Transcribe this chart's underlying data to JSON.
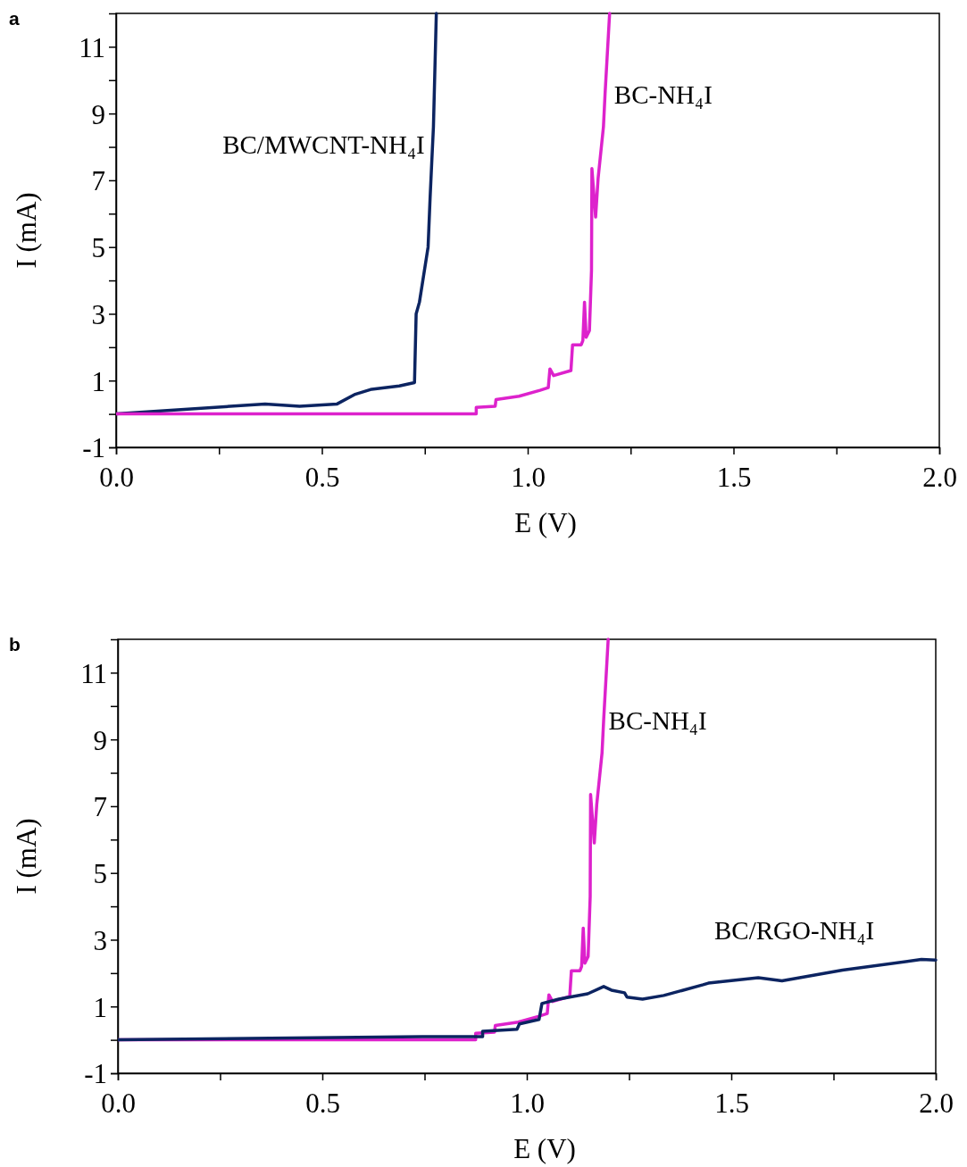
{
  "chart_data": [
    {
      "type": "line",
      "title": "a",
      "xlabel": "E (V)",
      "ylabel": "I (mA)",
      "xlim": [
        0,
        2
      ],
      "ylim": [
        -1,
        12
      ],
      "xticks": [
        {
          "value": 0,
          "label": "0.0"
        },
        {
          "value": 0.25,
          "label": null
        },
        {
          "value": 0.5,
          "label": "0.5"
        },
        {
          "value": 0.75,
          "label": null
        },
        {
          "value": 1,
          "label": "1.0"
        },
        {
          "value": 1.25,
          "label": null
        },
        {
          "value": 1.5,
          "label": "1.5"
        },
        {
          "value": 1.75,
          "label": null
        },
        {
          "value": 2,
          "label": "2.0"
        }
      ],
      "yticks": [
        -1,
        {
          "value": 0,
          "label": null
        },
        1,
        {
          "value": 2,
          "label": null
        },
        3,
        {
          "value": 4,
          "label": null
        },
        5,
        {
          "value": 6,
          "label": null
        },
        7,
        {
          "value": 8,
          "label": null
        },
        9,
        {
          "value": 10,
          "label": null
        },
        11
      ],
      "grid": false,
      "legend": false,
      "marker": "none",
      "line_style": "solid",
      "series": [
        {
          "name": "BC/MWCNT-NH₄I",
          "color": "#0c2461",
          "x": [
            0,
            0.362,
            0.446,
            0.537,
            0.579,
            0.621,
            0.688,
            0.725,
            0.729,
            0.737,
            0.758,
            0.763,
            0.767,
            0.771,
            0.778
          ],
          "values": [
            0,
            0.3,
            0.23,
            0.3,
            0.58,
            0.74,
            0.84,
            0.94,
            3.0,
            3.35,
            5.0,
            6.5,
            7.56,
            8.6,
            12
          ]
        },
        {
          "name": "BC-NH₄I",
          "color": "#dd22cc",
          "x": [
            0,
            0.875,
            0.875,
            0.921,
            0.923,
            0.979,
            1.03,
            1.05,
            1.054,
            1.063,
            1.105,
            1.109,
            1.13,
            1.134,
            1.138,
            1.142,
            1.15,
            1.155,
            1.156,
            1.165,
            1.171,
            1.184,
            1.188,
            1.199
          ],
          "values": [
            0,
            0,
            0.2,
            0.23,
            0.43,
            0.53,
            0.71,
            0.79,
            1.35,
            1.15,
            1.3,
            2.07,
            2.07,
            2.2,
            3.35,
            2.3,
            2.5,
            4.3,
            7.35,
            5.9,
            7.05,
            8.6,
            9.6,
            12
          ]
        }
      ]
    },
    {
      "type": "line",
      "title": "b",
      "xlabel": "E (V)",
      "ylabel": "I (mA)",
      "xlim": [
        0,
        2
      ],
      "ylim": [
        -1,
        12
      ],
      "xticks": [
        {
          "value": 0,
          "label": "0.0"
        },
        {
          "value": 0.25,
          "label": null
        },
        {
          "value": 0.5,
          "label": "0.5"
        },
        {
          "value": 0.75,
          "label": null
        },
        {
          "value": 1,
          "label": "1.0"
        },
        {
          "value": 1.25,
          "label": null
        },
        {
          "value": 1.5,
          "label": "1.5"
        },
        {
          "value": 1.75,
          "label": null
        },
        {
          "value": 2,
          "label": "2.0"
        }
      ],
      "yticks": [
        -1,
        {
          "value": 0,
          "label": null
        },
        1,
        {
          "value": 2,
          "label": null
        },
        3,
        {
          "value": 4,
          "label": null
        },
        5,
        {
          "value": 6,
          "label": null
        },
        7,
        {
          "value": 8,
          "label": null
        },
        9,
        {
          "value": 10,
          "label": null
        },
        11
      ],
      "grid": false,
      "legend": false,
      "marker": "none",
      "line_style": "solid",
      "series": [
        {
          "name": "BC-NH₄I",
          "color": "#dd22cc",
          "x": [
            0,
            0.875,
            0.875,
            0.921,
            0.923,
            0.979,
            1.03,
            1.05,
            1.054,
            1.063,
            1.105,
            1.109,
            1.13,
            1.134,
            1.138,
            1.142,
            1.15,
            1.155,
            1.156,
            1.165,
            1.171,
            1.184,
            1.188,
            1.199
          ],
          "values": [
            0,
            0,
            0.2,
            0.23,
            0.43,
            0.53,
            0.71,
            0.79,
            1.35,
            1.15,
            1.3,
            2.07,
            2.07,
            2.2,
            3.35,
            2.3,
            2.5,
            4.3,
            7.35,
            5.9,
            7.05,
            8.6,
            9.6,
            12
          ]
        },
        {
          "name": "BC/RGO-NH₄I",
          "color": "#0c2461",
          "x": [
            0,
            0.745,
            0.892,
            0.892,
            0.976,
            0.982,
            1.03,
            1.037,
            1.078,
            1.149,
            1.188,
            1.207,
            1.239,
            1.245,
            1.283,
            1.335,
            1.431,
            1.444,
            1.566,
            1.624,
            1.772,
            1.965,
            2.0
          ],
          "values": [
            0,
            0.1,
            0.1,
            0.26,
            0.32,
            0.48,
            0.61,
            1.09,
            1.22,
            1.38,
            1.6,
            1.49,
            1.41,
            1.28,
            1.22,
            1.33,
            1.65,
            1.7,
            1.86,
            1.77,
            2.09,
            2.41,
            2.39
          ]
        }
      ]
    }
  ]
}
